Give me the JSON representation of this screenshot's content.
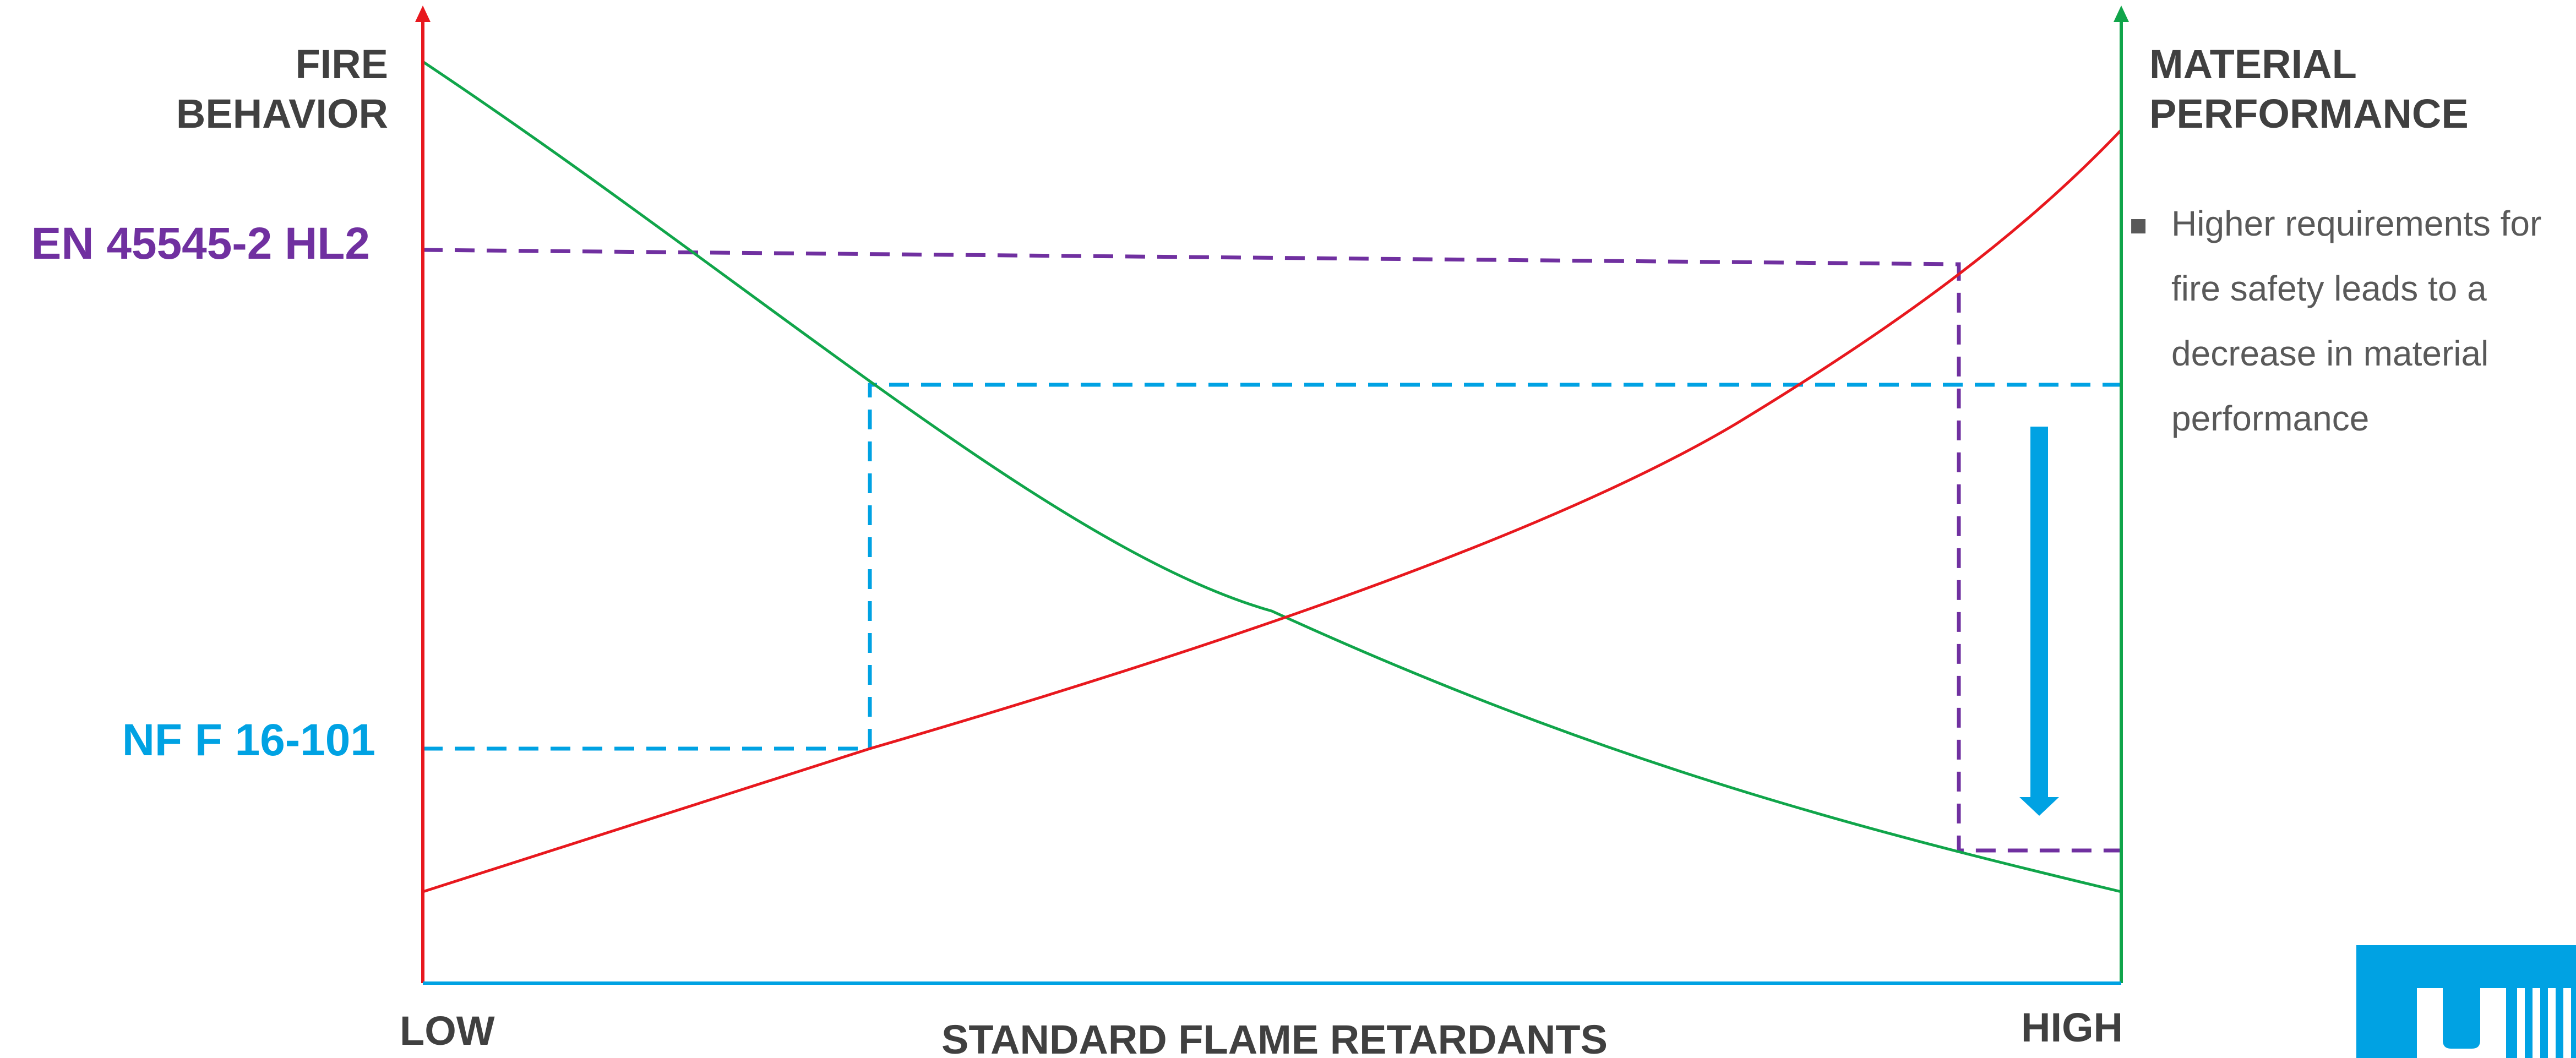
{
  "left_axis_title": [
    "FIRE",
    "BEHAVIOR"
  ],
  "right_axis_title": [
    "MATERIAL",
    "PERFORMANCE"
  ],
  "x_axis_title": "STANDARD FLAME RETARDANTS",
  "x_axis_low_label": "LOW",
  "x_axis_high_label": "HIGH",
  "standards": [
    {
      "label": "EN 45545-2 HL2",
      "color": "#7030A0"
    },
    {
      "label": "NF F 16-101",
      "color": "#00A2E3"
    }
  ],
  "note_bullet": "■",
  "note_lines": [
    "Higher requirements for",
    "fire safety leads to a",
    "decrease in material",
    "performance"
  ],
  "colors": {
    "fire_behavior_curve": "#E8181E",
    "material_performance_curve": "#10A54A",
    "x_axis": "#00A2E3",
    "arrow": "#00A2E3",
    "text_dark": "#404040",
    "text_note": "#595959"
  },
  "icons": {
    "trend_arrow": "down-arrow-icon",
    "logo": "brand-logo-icon"
  }
}
